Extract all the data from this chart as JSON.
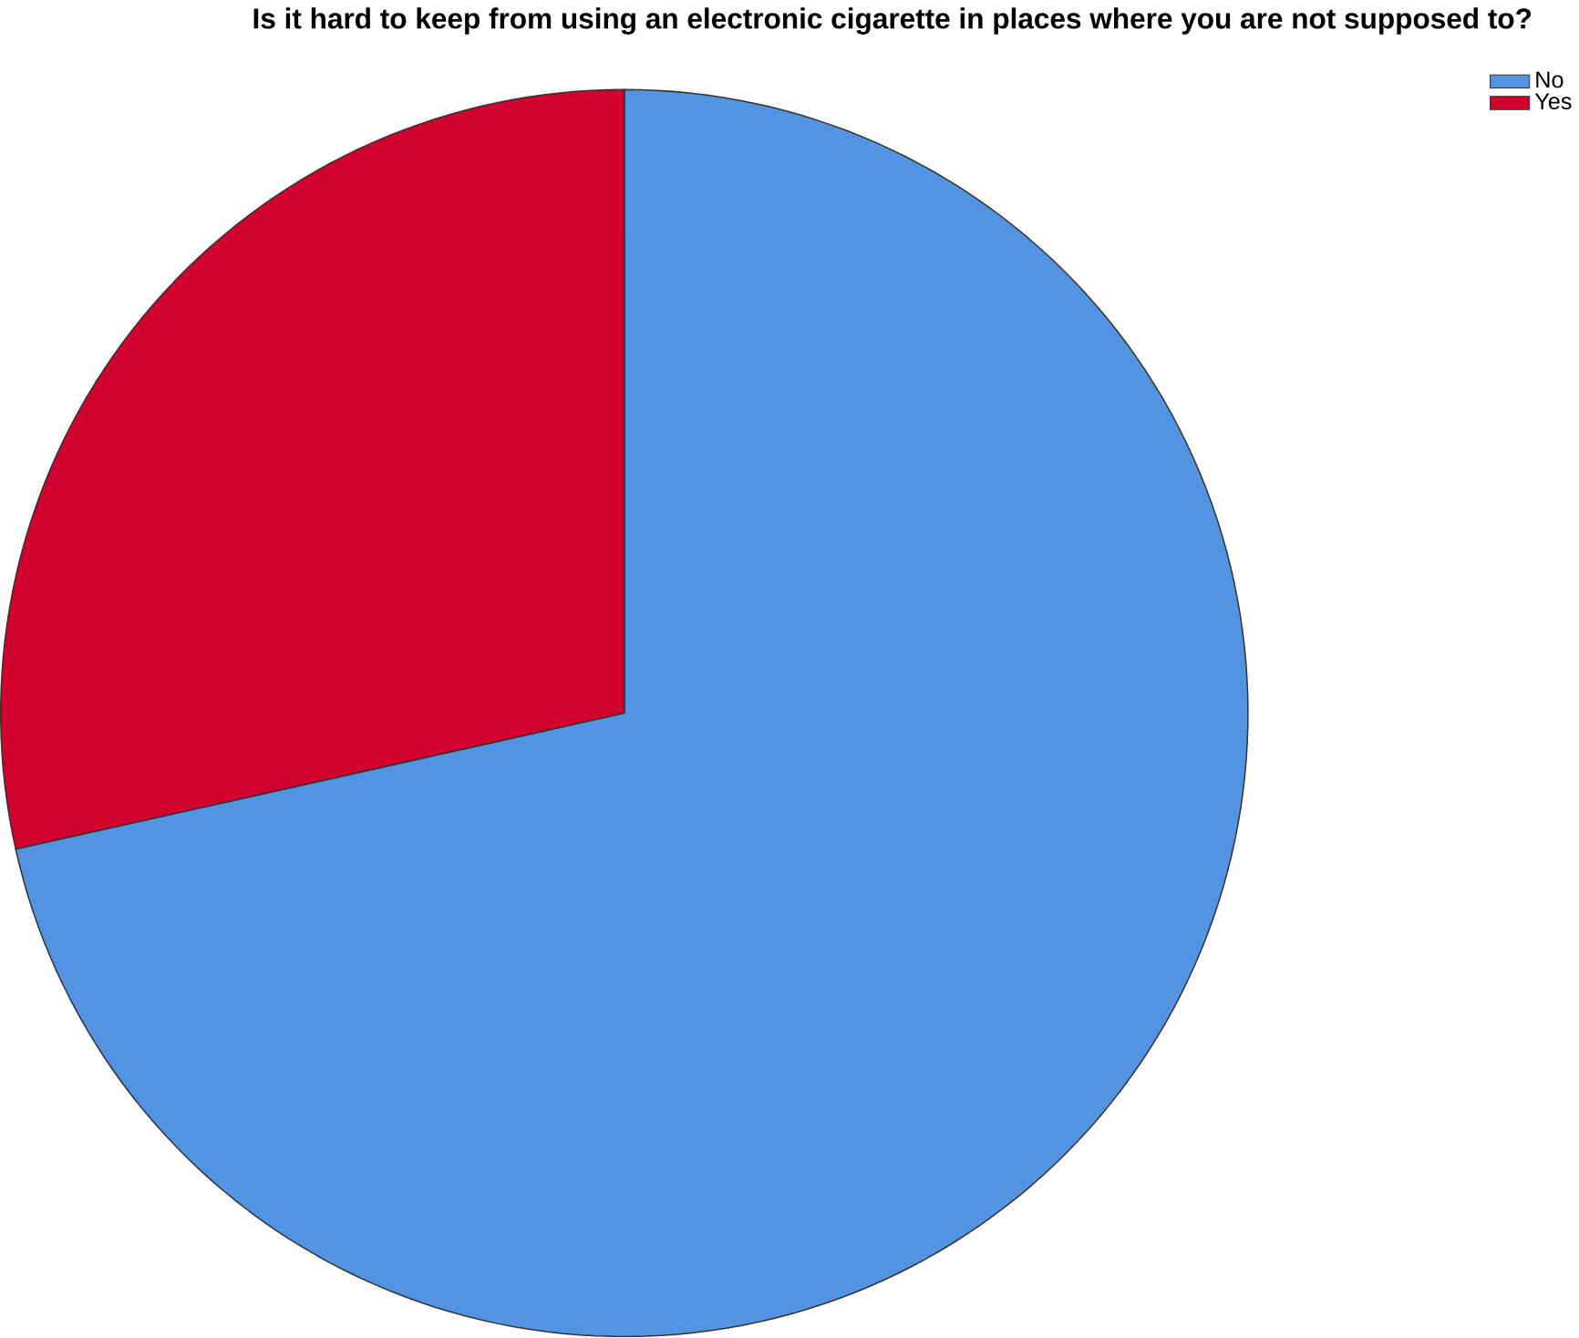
{
  "chart_data": {
    "type": "pie",
    "title": "Is it hard to keep from using an electronic cigarette in places where you are not supposed to?",
    "categories": [
      "No",
      "Yes"
    ],
    "values": [
      71.5,
      28.5
    ],
    "colors": [
      "#5294e2",
      "#d2002e"
    ],
    "legend": "top right"
  }
}
